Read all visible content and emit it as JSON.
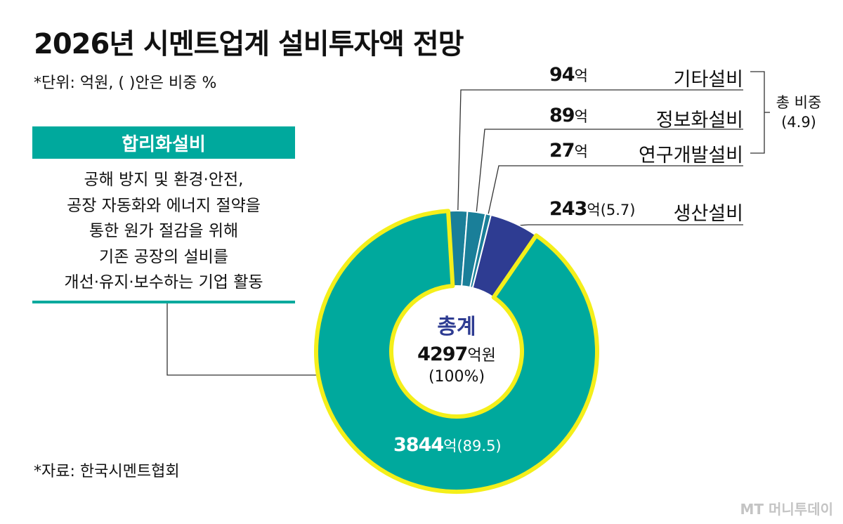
{
  "title": "2026년 시멘트업계 설비투자액 전망",
  "unit_note": "*단위: 억원, (  )안은 비중 %",
  "source": "*자료: 한국시멘트협회",
  "logo": "MT 머니투데이",
  "explainer": {
    "heading": "합리화설비",
    "lines": [
      "공해 방지 및 환경·안전,",
      "공장 자동화와 에너지 절약을",
      "통한 원가 절감을 위해",
      "기존 공장의 설비를",
      "개선·유지·보수하는 기업 활동"
    ]
  },
  "center": {
    "title": "총계",
    "total_value": "4297",
    "total_unit": "억원",
    "total_pct": "(100%)"
  },
  "group_ratio": {
    "label": "총 비중",
    "value": "(4.9)"
  },
  "colors": {
    "rationalization": "#00a99d",
    "others": "#1a7f99",
    "it": "#1a7f99",
    "rnd": "#1a7f99",
    "production": "#2e3c92",
    "highlight": "#f4ef1a"
  },
  "chart_data": {
    "type": "pie",
    "unit": "억원",
    "total": 4297,
    "slices": [
      {
        "key": "others",
        "name": "기타설비",
        "value": 94,
        "value_label": "94",
        "unit_label": "억",
        "pct_label": ""
      },
      {
        "key": "it",
        "name": "정보화설비",
        "value": 89,
        "value_label": "89",
        "unit_label": "억",
        "pct_label": ""
      },
      {
        "key": "rnd",
        "name": "연구개발설비",
        "value": 27,
        "value_label": "27",
        "unit_label": "억",
        "pct_label": ""
      },
      {
        "key": "production",
        "name": "생산설비",
        "value": 243,
        "value_label": "243",
        "unit_label": "억",
        "pct_label": "(5.7)"
      },
      {
        "key": "rationalization",
        "name": "합리화설비",
        "value": 3844,
        "value_label": "3844",
        "unit_label": "억",
        "pct_label": "(89.5)"
      }
    ]
  }
}
